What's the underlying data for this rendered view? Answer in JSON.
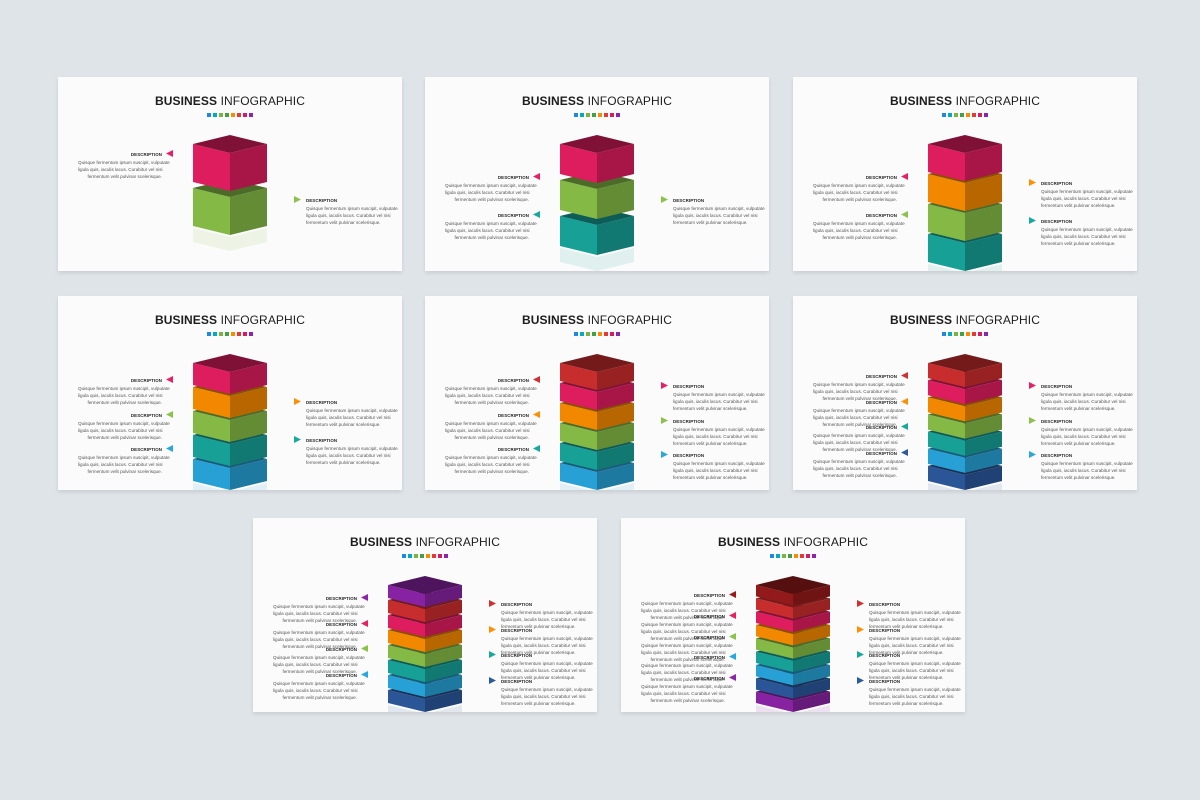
{
  "title_bold": "BUSINESS",
  "title_light": "INFOGRAPHIC",
  "description_title": "DESCRIPTION",
  "description_lines": [
    "Quisque fermentum ipsum suscipit, vulputate",
    "ligula quis, iaculis lacus. Curabitur vel nisi",
    "fermentum velit pulvinar scelerisque."
  ],
  "swatch_colors": [
    "#1e88e5",
    "#00acc1",
    "#7cb342",
    "#43a047",
    "#fb8c00",
    "#e53935",
    "#d81b60",
    "#8e24aa"
  ],
  "slides": [
    {
      "layers": [
        "#e91e63",
        "#8bc34a"
      ],
      "gap": true,
      "left": [
        {
          "color": "#e91e63"
        }
      ],
      "right": [
        {
          "color": "#8bc34a"
        }
      ]
    },
    {
      "layers": [
        "#e91e63",
        "#8bc34a",
        "#17a89e"
      ],
      "gap": true,
      "left": [
        {
          "color": "#e91e63"
        },
        {
          "color": "#17a89e"
        }
      ],
      "right": [
        {
          "color": "#8bc34a"
        }
      ]
    },
    {
      "layers": [
        "#e91e63",
        "#ff8f00",
        "#8bc34a",
        "#17a89e"
      ],
      "gap": false,
      "left": [
        {
          "color": "#e91e63"
        },
        {
          "color": "#8bc34a"
        }
      ],
      "right": [
        {
          "color": "#ff8f00"
        },
        {
          "color": "#17a89e"
        }
      ]
    },
    {
      "layers": [
        "#e91e63",
        "#ff8f00",
        "#8bc34a",
        "#17a89e",
        "#29a8e0"
      ],
      "gap": false,
      "left": [
        {
          "color": "#e91e63"
        },
        {
          "color": "#8bc34a"
        },
        {
          "color": "#29a8e0"
        }
      ],
      "right": [
        {
          "color": "#ff8f00"
        },
        {
          "color": "#17a89e"
        }
      ]
    },
    {
      "layers": [
        "#d32f2f",
        "#e91e63",
        "#ff8f00",
        "#8bc34a",
        "#17a89e",
        "#29a8e0"
      ],
      "gap": false,
      "left": [
        {
          "color": "#d32f2f"
        },
        {
          "color": "#ff8f00"
        },
        {
          "color": "#17a89e"
        }
      ],
      "right": [
        {
          "color": "#e91e63"
        },
        {
          "color": "#8bc34a"
        },
        {
          "color": "#29a8e0"
        }
      ]
    },
    {
      "layers": [
        "#d32f2f",
        "#e91e63",
        "#ff8f00",
        "#8bc34a",
        "#17a89e",
        "#29a8e0",
        "#2c5aa0"
      ],
      "gap": false,
      "left": [
        {
          "color": "#d32f2f"
        },
        {
          "color": "#ff8f00"
        },
        {
          "color": "#17a89e"
        },
        {
          "color": "#2c5aa0"
        }
      ],
      "right": [
        {
          "color": "#e91e63"
        },
        {
          "color": "#8bc34a"
        },
        {
          "color": "#29a8e0"
        }
      ]
    },
    {
      "layers": [
        "#8e24aa",
        "#d32f2f",
        "#e91e63",
        "#ff8f00",
        "#8bc34a",
        "#17a89e",
        "#29a8e0",
        "#2c5aa0"
      ],
      "gap": false,
      "left": [
        {
          "color": "#8e24aa"
        },
        {
          "color": "#e91e63"
        },
        {
          "color": "#8bc34a"
        },
        {
          "color": "#29a8e0"
        }
      ],
      "right": [
        {
          "color": "#d32f2f"
        },
        {
          "color": "#ff8f00"
        },
        {
          "color": "#17a89e"
        },
        {
          "color": "#2c5aa0"
        }
      ]
    },
    {
      "layers": [
        "#9b1b1b",
        "#d32f2f",
        "#e91e63",
        "#ff8f00",
        "#8bc34a",
        "#17a89e",
        "#29a8e0",
        "#2c5aa0",
        "#8e24aa"
      ],
      "gap": false,
      "left": [
        {
          "color": "#9b1b1b"
        },
        {
          "color": "#e91e63"
        },
        {
          "color": "#8bc34a"
        },
        {
          "color": "#29a8e0"
        },
        {
          "color": "#8e24aa"
        }
      ],
      "right": [
        {
          "color": "#d32f2f"
        },
        {
          "color": "#ff8f00"
        },
        {
          "color": "#17a89e"
        },
        {
          "color": "#2c5aa0"
        }
      ]
    }
  ]
}
